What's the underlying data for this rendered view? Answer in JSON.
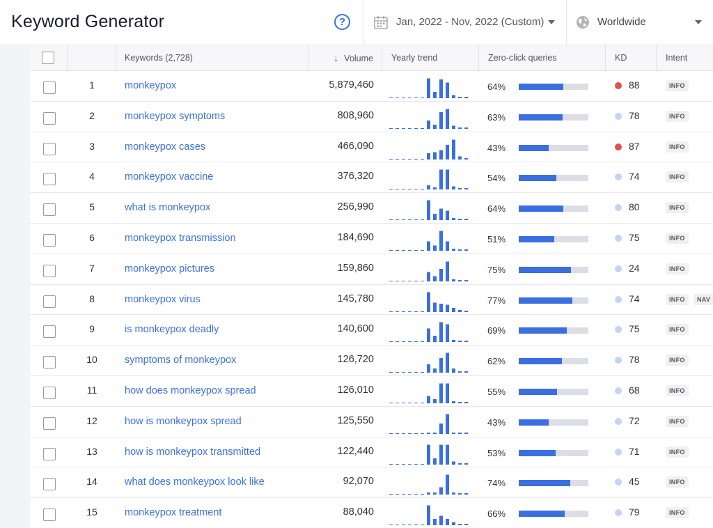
{
  "header": {
    "title": "Keyword Generator",
    "help_glyph": "?",
    "date_range": "Jan, 2022 - Nov, 2022 (Custom)",
    "region": "Worldwide"
  },
  "columns": {
    "keywords": "Keywords (2,728)",
    "volume": "Volume",
    "sort_arrow": "↓",
    "trend": "Yearly trend",
    "zero_click": "Zero-click queries",
    "kd": "KD",
    "intent": "Intent"
  },
  "colors": {
    "accent": "#3b6fe0",
    "kd_hard": "#e0524f",
    "kd_light": "#c6d4f4",
    "baseline": "#3b6fe0"
  },
  "rows": [
    {
      "n": "1",
      "keyword": "monkeypox",
      "volume": "5,879,460",
      "trend": [
        0,
        0,
        0,
        0,
        0,
        0,
        0.95,
        0.3,
        0.9,
        0.75,
        0.15,
        0.05,
        0.05
      ],
      "zc": "64%",
      "zc_v": 64,
      "kd": "88",
      "kd_level": "hard",
      "intents": [
        "INFO"
      ]
    },
    {
      "n": "2",
      "keyword": "monkeypox symptoms",
      "volume": "808,960",
      "trend": [
        0,
        0,
        0,
        0,
        0,
        0,
        0.4,
        0.2,
        0.8,
        0.95,
        0.15,
        0.05,
        0.05
      ],
      "zc": "63%",
      "zc_v": 63,
      "kd": "78",
      "kd_level": "light",
      "intents": [
        "INFO"
      ]
    },
    {
      "n": "3",
      "keyword": "monkeypox cases",
      "volume": "466,090",
      "trend": [
        0,
        0,
        0,
        0,
        0,
        0,
        0.3,
        0.35,
        0.45,
        0.7,
        0.95,
        0.15,
        0.05
      ],
      "zc": "43%",
      "zc_v": 43,
      "kd": "87",
      "kd_level": "hard",
      "intents": [
        "INFO"
      ]
    },
    {
      "n": "4",
      "keyword": "monkeypox vaccine",
      "volume": "376,320",
      "trend": [
        0,
        0,
        0,
        0,
        0,
        0,
        0.2,
        0.1,
        0.95,
        0.95,
        0.15,
        0.05,
        0.05
      ],
      "zc": "54%",
      "zc_v": 54,
      "kd": "74",
      "kd_level": "light",
      "intents": [
        "INFO"
      ]
    },
    {
      "n": "5",
      "keyword": "what is monkeypox",
      "volume": "256,990",
      "trend": [
        0,
        0,
        0,
        0,
        0,
        0,
        0.95,
        0.3,
        0.55,
        0.45,
        0.1,
        0.05,
        0.05
      ],
      "zc": "64%",
      "zc_v": 64,
      "kd": "80",
      "kd_level": "light",
      "intents": [
        "INFO"
      ]
    },
    {
      "n": "6",
      "keyword": "monkeypox transmission",
      "volume": "184,690",
      "trend": [
        0,
        0,
        0,
        0,
        0,
        0,
        0.45,
        0.25,
        0.95,
        0.45,
        0.1,
        0.05,
        0.05
      ],
      "zc": "51%",
      "zc_v": 51,
      "kd": "75",
      "kd_level": "light",
      "intents": [
        "INFO"
      ]
    },
    {
      "n": "7",
      "keyword": "monkeypox pictures",
      "volume": "159,860",
      "trend": [
        0,
        0,
        0,
        0,
        0,
        0,
        0.45,
        0.25,
        0.6,
        0.95,
        0.1,
        0.05,
        0.05
      ],
      "zc": "75%",
      "zc_v": 75,
      "kd": "24",
      "kd_level": "light",
      "intents": [
        "INFO"
      ]
    },
    {
      "n": "8",
      "keyword": "monkeypox virus",
      "volume": "145,780",
      "trend": [
        0,
        0,
        0,
        0,
        0,
        0,
        0.95,
        0.45,
        0.4,
        0.35,
        0.2,
        0.1,
        0.05
      ],
      "zc": "77%",
      "zc_v": 77,
      "kd": "74",
      "kd_level": "light",
      "intents": [
        "INFO",
        "NAV"
      ]
    },
    {
      "n": "9",
      "keyword": "is monkeypox deadly",
      "volume": "140,600",
      "trend": [
        0,
        0,
        0,
        0,
        0,
        0,
        0.65,
        0.3,
        0.95,
        0.85,
        0.1,
        0.05,
        0.05
      ],
      "zc": "69%",
      "zc_v": 69,
      "kd": "75",
      "kd_level": "light",
      "intents": [
        "INFO"
      ]
    },
    {
      "n": "10",
      "keyword": "symptoms of monkeypox",
      "volume": "126,720",
      "trend": [
        0,
        0,
        0,
        0,
        0,
        0,
        0.4,
        0.2,
        0.7,
        0.95,
        0.2,
        0.05,
        0.05
      ],
      "zc": "62%",
      "zc_v": 62,
      "kd": "78",
      "kd_level": "light",
      "intents": [
        "INFO"
      ]
    },
    {
      "n": "11",
      "keyword": "how does monkeypox spread",
      "volume": "126,010",
      "trend": [
        0,
        0,
        0,
        0,
        0,
        0,
        0.35,
        0.2,
        0.95,
        0.95,
        0.1,
        0.05,
        0.05
      ],
      "zc": "55%",
      "zc_v": 55,
      "kd": "68",
      "kd_level": "light",
      "intents": [
        "INFO"
      ]
    },
    {
      "n": "12",
      "keyword": "how is monkeypox spread",
      "volume": "125,550",
      "trend": [
        0,
        0,
        0,
        0,
        0,
        0,
        0.05,
        0.05,
        0.5,
        0.95,
        0.05,
        0.05,
        0.05
      ],
      "zc": "43%",
      "zc_v": 43,
      "kd": "72",
      "kd_level": "light",
      "intents": [
        "INFO"
      ]
    },
    {
      "n": "13",
      "keyword": "how is monkeypox transmitted",
      "volume": "122,440",
      "trend": [
        0,
        0,
        0,
        0,
        0,
        0,
        0.95,
        0.3,
        0.95,
        0.95,
        0.15,
        0.05,
        0.05
      ],
      "zc": "53%",
      "zc_v": 53,
      "kd": "71",
      "kd_level": "light",
      "intents": [
        "INFO"
      ]
    },
    {
      "n": "14",
      "keyword": "what does monkeypox look like",
      "volume": "92,070",
      "trend": [
        0,
        0,
        0,
        0,
        0,
        0,
        0.1,
        0.1,
        0.35,
        0.95,
        0.1,
        0.05,
        0.05
      ],
      "zc": "74%",
      "zc_v": 74,
      "kd": "45",
      "kd_level": "light",
      "intents": [
        "INFO"
      ]
    },
    {
      "n": "15",
      "keyword": "monkeypox treatment",
      "volume": "88,040",
      "trend": [
        0,
        0,
        0,
        0,
        0,
        0,
        0.95,
        0.3,
        0.45,
        0.3,
        0.15,
        0.05,
        0.05
      ],
      "zc": "66%",
      "zc_v": 66,
      "kd": "79",
      "kd_level": "light",
      "intents": [
        "INFO"
      ]
    }
  ]
}
